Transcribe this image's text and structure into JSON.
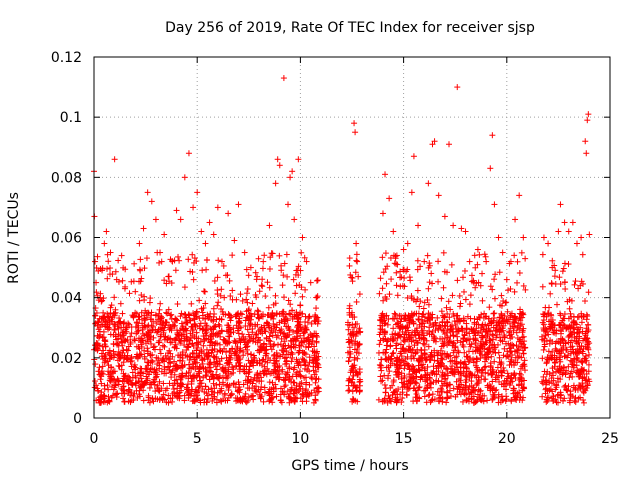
{
  "chart_data": {
    "type": "scatter",
    "title": "Day 256 of 2019, Rate Of TEC Index for receiver sjsp",
    "xlabel": "GPS time / hours",
    "ylabel": "ROTI / TECUs",
    "xlim": [
      0,
      25
    ],
    "ylim": [
      0,
      0.12
    ],
    "x_ticks": [
      "0",
      "5",
      "10",
      "15",
      "20",
      "25"
    ],
    "y_ticks": [
      "0",
      "0.02",
      "0.04",
      "0.06",
      "0.08",
      "0.1",
      "0.12"
    ],
    "grid": true,
    "marker": "+",
    "color": "#ff0000",
    "series": [
      {
        "name": "ROTI",
        "points": [
          [
            0.0,
            0.082
          ],
          [
            0.02,
            0.067
          ],
          [
            0.05,
            0.052
          ],
          [
            0.1,
            0.045
          ],
          [
            0.3,
            0.04
          ],
          [
            0.5,
            0.058
          ],
          [
            0.6,
            0.062
          ],
          [
            0.8,
            0.055
          ],
          [
            1.0,
            0.086
          ],
          [
            1.1,
            0.046
          ],
          [
            1.3,
            0.038
          ],
          [
            1.5,
            0.043
          ],
          [
            1.7,
            0.031
          ],
          [
            2.0,
            0.042
          ],
          [
            2.2,
            0.058
          ],
          [
            2.4,
            0.063
          ],
          [
            2.6,
            0.075
          ],
          [
            2.8,
            0.072
          ],
          [
            3.0,
            0.066
          ],
          [
            3.2,
            0.055
          ],
          [
            3.4,
            0.061
          ],
          [
            3.6,
            0.047
          ],
          [
            3.8,
            0.052
          ],
          [
            4.0,
            0.069
          ],
          [
            4.2,
            0.066
          ],
          [
            4.4,
            0.08
          ],
          [
            4.6,
            0.088
          ],
          [
            4.8,
            0.07
          ],
          [
            5.0,
            0.075
          ],
          [
            5.2,
            0.062
          ],
          [
            5.4,
            0.058
          ],
          [
            5.6,
            0.065
          ],
          [
            5.8,
            0.061
          ],
          [
            6.0,
            0.07
          ],
          [
            6.2,
            0.052
          ],
          [
            6.5,
            0.068
          ],
          [
            6.8,
            0.059
          ],
          [
            7.0,
            0.071
          ],
          [
            7.3,
            0.055
          ],
          [
            7.6,
            0.05
          ],
          [
            7.9,
            0.047
          ],
          [
            8.2,
            0.052
          ],
          [
            8.5,
            0.064
          ],
          [
            8.8,
            0.078
          ],
          [
            8.9,
            0.086
          ],
          [
            9.0,
            0.084
          ],
          [
            9.2,
            0.113
          ],
          [
            9.4,
            0.071
          ],
          [
            9.5,
            0.08
          ],
          [
            9.6,
            0.082
          ],
          [
            9.7,
            0.066
          ],
          [
            9.9,
            0.086
          ],
          [
            10.1,
            0.06
          ],
          [
            10.3,
            0.052
          ],
          [
            10.5,
            0.045
          ],
          [
            10.8,
            0.04
          ],
          [
            12.5,
            0.035
          ],
          [
            12.6,
            0.098
          ],
          [
            12.65,
            0.095
          ],
          [
            12.7,
            0.058
          ],
          [
            12.75,
            0.052
          ],
          [
            12.8,
            0.047
          ],
          [
            12.4,
            0.022
          ],
          [
            12.5,
            0.012
          ],
          [
            12.6,
            0.03
          ],
          [
            12.7,
            0.01
          ],
          [
            14.0,
            0.068
          ],
          [
            14.1,
            0.081
          ],
          [
            14.3,
            0.073
          ],
          [
            14.5,
            0.062
          ],
          [
            14.7,
            0.051
          ],
          [
            15.0,
            0.056
          ],
          [
            15.2,
            0.058
          ],
          [
            15.4,
            0.075
          ],
          [
            15.5,
            0.087
          ],
          [
            15.7,
            0.064
          ],
          [
            16.0,
            0.052
          ],
          [
            16.2,
            0.078
          ],
          [
            16.4,
            0.091
          ],
          [
            16.5,
            0.092
          ],
          [
            16.7,
            0.074
          ],
          [
            17.0,
            0.067
          ],
          [
            17.2,
            0.091
          ],
          [
            17.4,
            0.064
          ],
          [
            17.6,
            0.11
          ],
          [
            17.8,
            0.063
          ],
          [
            18.0,
            0.062
          ],
          [
            18.2,
            0.052
          ],
          [
            18.4,
            0.045
          ],
          [
            18.6,
            0.056
          ],
          [
            18.8,
            0.048
          ],
          [
            19.0,
            0.052
          ],
          [
            19.2,
            0.083
          ],
          [
            19.3,
            0.094
          ],
          [
            19.4,
            0.071
          ],
          [
            19.6,
            0.06
          ],
          [
            19.8,
            0.055
          ],
          [
            20.0,
            0.046
          ],
          [
            20.2,
            0.052
          ],
          [
            20.4,
            0.066
          ],
          [
            20.6,
            0.074
          ],
          [
            20.8,
            0.06
          ],
          [
            21.8,
            0.06
          ],
          [
            22.0,
            0.058
          ],
          [
            22.2,
            0.05
          ],
          [
            22.5,
            0.062
          ],
          [
            22.6,
            0.071
          ],
          [
            22.8,
            0.065
          ],
          [
            23.0,
            0.062
          ],
          [
            23.2,
            0.065
          ],
          [
            23.4,
            0.058
          ],
          [
            23.6,
            0.06
          ],
          [
            23.8,
            0.092
          ],
          [
            23.85,
            0.088
          ],
          [
            23.9,
            0.099
          ],
          [
            23.95,
            0.101
          ],
          [
            24.0,
            0.061
          ]
        ]
      }
    ],
    "noise_band": {
      "segments": [
        [
          0.0,
          10.9
        ],
        [
          12.3,
          12.9
        ],
        [
          13.8,
          20.9
        ],
        [
          21.7,
          24.0
        ]
      ],
      "typical_range": [
        0.005,
        0.035
      ],
      "note": "dense cloud of ROTI samples concentrated between roughly 0.005 and 0.035 TECU"
    }
  }
}
